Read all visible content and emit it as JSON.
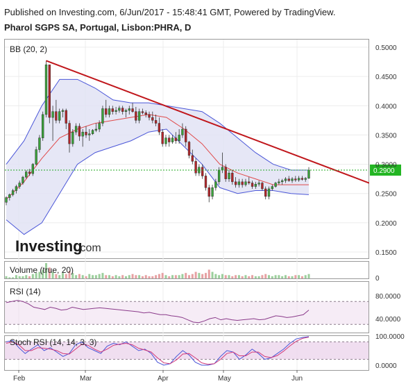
{
  "header": {
    "published": "Published on Investing.com, 6/Jun/2017 - 15:48:41 GMT, Powered by TradingView.",
    "symbol": "Pharol SGPS SA, Portugal, Lisbon:PHRA, D"
  },
  "logo": {
    "main": "Investing",
    "suffix": ".com"
  },
  "colors": {
    "up": "#3aa23a",
    "down": "#b3262a",
    "trend": "#c0161b",
    "bb_band": "#4a56d8",
    "bb_mid": "#e04a4a",
    "bb_fill": "#e2e3f4",
    "price_line": "#22aa22",
    "price_tag": "#23b523",
    "rsi": "#8a3a8a",
    "stoch_k": "#4a56d8",
    "stoch_d": "#d23a7a",
    "osc_fill": "#eedaee"
  },
  "chart_data": [
    {
      "type": "candlestick",
      "title": "Pharol SGPS SA, Portugal, Lisbon:PHRA, D",
      "indicator_label": "BB (20, 2)",
      "x_ticks": [
        "Feb",
        "Mar",
        "Apr",
        "May",
        "Jun"
      ],
      "y_ticks": [
        "0.5000",
        "0.4500",
        "0.4000",
        "0.3500",
        "0.3000",
        "0.2500",
        "0.2000",
        "0.1500"
      ],
      "ylim": [
        0.145,
        0.52
      ],
      "last_price_label": "0.2900",
      "last_price": 0.29,
      "trend_line": {
        "start_index": 12,
        "start_value": 0.477,
        "end_index": 110,
        "end_value": 0.266
      },
      "ohlc": [
        [
          0.235,
          0.245,
          0.23,
          0.243
        ],
        [
          0.243,
          0.25,
          0.238,
          0.248
        ],
        [
          0.248,
          0.258,
          0.245,
          0.255
        ],
        [
          0.255,
          0.265,
          0.25,
          0.262
        ],
        [
          0.262,
          0.272,
          0.258,
          0.268
        ],
        [
          0.268,
          0.28,
          0.265,
          0.278
        ],
        [
          0.278,
          0.29,
          0.275,
          0.287
        ],
        [
          0.287,
          0.292,
          0.28,
          0.284
        ],
        [
          0.284,
          0.302,
          0.28,
          0.3
        ],
        [
          0.3,
          0.33,
          0.298,
          0.325
        ],
        [
          0.325,
          0.35,
          0.32,
          0.345
        ],
        [
          0.345,
          0.39,
          0.34,
          0.385
        ],
        [
          0.385,
          0.477,
          0.38,
          0.47
        ],
        [
          0.47,
          0.47,
          0.37,
          0.38
        ],
        [
          0.38,
          0.4,
          0.34,
          0.39
        ],
        [
          0.39,
          0.41,
          0.37,
          0.375
        ],
        [
          0.375,
          0.395,
          0.37,
          0.39
        ],
        [
          0.39,
          0.395,
          0.38,
          0.392
        ],
        [
          0.392,
          0.395,
          0.36,
          0.37
        ],
        [
          0.37,
          0.375,
          0.32,
          0.335
        ],
        [
          0.335,
          0.36,
          0.33,
          0.355
        ],
        [
          0.355,
          0.37,
          0.35,
          0.365
        ],
        [
          0.365,
          0.37,
          0.34,
          0.348
        ],
        [
          0.348,
          0.36,
          0.33,
          0.355
        ],
        [
          0.355,
          0.365,
          0.345,
          0.35
        ],
        [
          0.35,
          0.36,
          0.34,
          0.352
        ],
        [
          0.352,
          0.36,
          0.35,
          0.358
        ],
        [
          0.358,
          0.37,
          0.355,
          0.36
        ],
        [
          0.36,
          0.375,
          0.355,
          0.37
        ],
        [
          0.37,
          0.4,
          0.365,
          0.395
        ],
        [
          0.395,
          0.41,
          0.38,
          0.385
        ],
        [
          0.385,
          0.4,
          0.38,
          0.395
        ],
        [
          0.395,
          0.4,
          0.385,
          0.39
        ],
        [
          0.39,
          0.398,
          0.385,
          0.392
        ],
        [
          0.392,
          0.4,
          0.388,
          0.396
        ],
        [
          0.396,
          0.4,
          0.385,
          0.39
        ],
        [
          0.39,
          0.395,
          0.38,
          0.392
        ],
        [
          0.392,
          0.4,
          0.385,
          0.395
        ],
        [
          0.395,
          0.405,
          0.388,
          0.39
        ],
        [
          0.39,
          0.398,
          0.37,
          0.375
        ],
        [
          0.375,
          0.395,
          0.37,
          0.39
        ],
        [
          0.39,
          0.395,
          0.385,
          0.388
        ],
        [
          0.388,
          0.392,
          0.38,
          0.385
        ],
        [
          0.385,
          0.39,
          0.375,
          0.38
        ],
        [
          0.38,
          0.39,
          0.37,
          0.375
        ],
        [
          0.375,
          0.385,
          0.365,
          0.37
        ],
        [
          0.37,
          0.38,
          0.35,
          0.355
        ],
        [
          0.355,
          0.36,
          0.33,
          0.335
        ],
        [
          0.335,
          0.35,
          0.33,
          0.345
        ],
        [
          0.345,
          0.35,
          0.33,
          0.338
        ],
        [
          0.338,
          0.35,
          0.335,
          0.345
        ],
        [
          0.345,
          0.355,
          0.335,
          0.34
        ],
        [
          0.34,
          0.36,
          0.335,
          0.35
        ],
        [
          0.35,
          0.37,
          0.345,
          0.36
        ],
        [
          0.36,
          0.365,
          0.33,
          0.338
        ],
        [
          0.338,
          0.34,
          0.31,
          0.315
        ],
        [
          0.315,
          0.325,
          0.3,
          0.305
        ],
        [
          0.305,
          0.31,
          0.28,
          0.285
        ],
        [
          0.285,
          0.3,
          0.28,
          0.295
        ],
        [
          0.295,
          0.3,
          0.275,
          0.28
        ],
        [
          0.28,
          0.285,
          0.255,
          0.26
        ],
        [
          0.26,
          0.265,
          0.235,
          0.245
        ],
        [
          0.245,
          0.265,
          0.24,
          0.26
        ],
        [
          0.26,
          0.275,
          0.255,
          0.27
        ],
        [
          0.27,
          0.295,
          0.265,
          0.29
        ],
        [
          0.29,
          0.32,
          0.285,
          0.295
        ],
        [
          0.295,
          0.3,
          0.27,
          0.275
        ],
        [
          0.275,
          0.29,
          0.27,
          0.285
        ],
        [
          0.285,
          0.29,
          0.265,
          0.27
        ],
        [
          0.27,
          0.278,
          0.26,
          0.265
        ],
        [
          0.265,
          0.275,
          0.26,
          0.27
        ],
        [
          0.27,
          0.275,
          0.26,
          0.265
        ],
        [
          0.265,
          0.275,
          0.262,
          0.27
        ],
        [
          0.27,
          0.278,
          0.265,
          0.268
        ],
        [
          0.268,
          0.272,
          0.258,
          0.262
        ],
        [
          0.262,
          0.27,
          0.258,
          0.266
        ],
        [
          0.266,
          0.272,
          0.262,
          0.268
        ],
        [
          0.268,
          0.27,
          0.255,
          0.258
        ],
        [
          0.258,
          0.262,
          0.24,
          0.245
        ],
        [
          0.245,
          0.262,
          0.24,
          0.258
        ],
        [
          0.258,
          0.265,
          0.255,
          0.262
        ],
        [
          0.262,
          0.27,
          0.26,
          0.268
        ],
        [
          0.268,
          0.275,
          0.265,
          0.27
        ],
        [
          0.27,
          0.275,
          0.265,
          0.272
        ],
        [
          0.272,
          0.278,
          0.268,
          0.275
        ],
        [
          0.275,
          0.28,
          0.27,
          0.272
        ],
        [
          0.272,
          0.278,
          0.268,
          0.275
        ],
        [
          0.275,
          0.28,
          0.27,
          0.273
        ],
        [
          0.273,
          0.28,
          0.27,
          0.276
        ],
        [
          0.276,
          0.28,
          0.272,
          0.274
        ],
        [
          0.274,
          0.278,
          0.27,
          0.276
        ],
        [
          0.276,
          0.295,
          0.275,
          0.29
        ]
      ],
      "bb_upper": [
        0.3,
        0.34,
        0.4,
        0.445,
        0.445,
        0.43,
        0.41,
        0.405,
        0.405,
        0.4,
        0.395,
        0.39,
        0.37,
        0.345,
        0.32,
        0.3,
        0.29,
        0.29
      ],
      "bb_middle": [
        0.24,
        0.27,
        0.31,
        0.345,
        0.36,
        0.37,
        0.375,
        0.38,
        0.385,
        0.38,
        0.36,
        0.335,
        0.3,
        0.285,
        0.275,
        0.265,
        0.265,
        0.265
      ],
      "bb_lower": [
        0.205,
        0.18,
        0.2,
        0.25,
        0.3,
        0.32,
        0.33,
        0.34,
        0.355,
        0.36,
        0.33,
        0.3,
        0.26,
        0.25,
        0.255,
        0.255,
        0.25,
        0.248
      ]
    },
    {
      "type": "bar",
      "title": "Volume (true, 20)",
      "y_ticks": [
        "0"
      ],
      "values": [
        2,
        1,
        1,
        3,
        2,
        2,
        3,
        2,
        4,
        5,
        6,
        8,
        14,
        10,
        6,
        4,
        3,
        5,
        4,
        7,
        5,
        3,
        4,
        3,
        2,
        4,
        3,
        3,
        4,
        5,
        3,
        3,
        2,
        3,
        2,
        3,
        2,
        3,
        4,
        3,
        3,
        2,
        3,
        2,
        2,
        3,
        4,
        5,
        3,
        2,
        3,
        3,
        3,
        4,
        5,
        3,
        4,
        6,
        5,
        4,
        5,
        8,
        6,
        4,
        3,
        4,
        3,
        3,
        2,
        3,
        3,
        2,
        3,
        2,
        3,
        2,
        2,
        3,
        4,
        3,
        2,
        3,
        3,
        2,
        3,
        2,
        2,
        3,
        3,
        2,
        3,
        4
      ]
    },
    {
      "type": "line",
      "title": "RSI (14)",
      "y_ticks": [
        "80.0000",
        "40.0000"
      ],
      "ylim": [
        20,
        100
      ],
      "band": [
        30,
        70
      ],
      "values": [
        68,
        70,
        72,
        70,
        66,
        60,
        58,
        56,
        60,
        58,
        55,
        56,
        60,
        58,
        56,
        57,
        58,
        59,
        58,
        57,
        56,
        55,
        54,
        53,
        52,
        50,
        51,
        49,
        47,
        47,
        45,
        44,
        42,
        38,
        34,
        33,
        36,
        40,
        42,
        38,
        40,
        38,
        37,
        38,
        39,
        40,
        38,
        39,
        42,
        45,
        44,
        42,
        43,
        45,
        47,
        55
      ]
    },
    {
      "type": "line",
      "title": "Stoch RSI (14, 14, 3, 3)",
      "y_ticks": [
        "100.0000",
        "0.0000"
      ],
      "ylim": [
        -15,
        115
      ],
      "band": [
        20,
        80
      ],
      "series": [
        {
          "values": [
            80,
            85,
            60,
            40,
            55,
            70,
            50,
            60,
            45,
            30,
            40,
            70,
            80,
            60,
            50,
            40,
            65,
            75,
            70,
            80,
            65,
            50,
            55,
            40,
            10,
            0,
            5,
            30,
            50,
            35,
            10,
            0,
            0,
            5,
            30,
            50,
            45,
            20,
            35,
            55,
            40,
            20,
            25,
            40,
            55,
            75,
            90,
            95,
            98
          ]
        },
        {
          "values": [
            75,
            80,
            70,
            50,
            50,
            60,
            58,
            55,
            50,
            40,
            38,
            55,
            72,
            68,
            55,
            45,
            55,
            68,
            72,
            75,
            70,
            58,
            52,
            45,
            25,
            8,
            5,
            18,
            38,
            40,
            25,
            8,
            3,
            5,
            20,
            40,
            45,
            32,
            32,
            45,
            45,
            30,
            26,
            33,
            48,
            66,
            82,
            92,
            96
          ]
        }
      ]
    }
  ],
  "time_axis": [
    "Feb",
    "Mar",
    "Apr",
    "May",
    "Jun"
  ]
}
